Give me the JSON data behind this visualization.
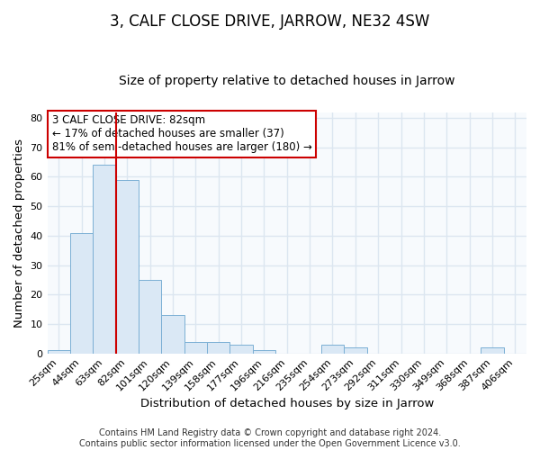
{
  "title": "3, CALF CLOSE DRIVE, JARROW, NE32 4SW",
  "subtitle": "Size of property relative to detached houses in Jarrow",
  "xlabel": "Distribution of detached houses by size in Jarrow",
  "ylabel": "Number of detached properties",
  "bar_labels": [
    "25sqm",
    "44sqm",
    "63sqm",
    "82sqm",
    "101sqm",
    "120sqm",
    "139sqm",
    "158sqm",
    "177sqm",
    "196sqm",
    "216sqm",
    "235sqm",
    "254sqm",
    "273sqm",
    "292sqm",
    "311sqm",
    "330sqm",
    "349sqm",
    "368sqm",
    "387sqm",
    "406sqm"
  ],
  "bar_values": [
    1,
    41,
    64,
    59,
    25,
    13,
    4,
    4,
    3,
    1,
    0,
    0,
    3,
    2,
    0,
    0,
    0,
    0,
    0,
    2,
    0
  ],
  "bar_color": "#dae8f5",
  "bar_edge_color": "#7bafd4",
  "vline_index": 3,
  "vline_color": "#cc0000",
  "ylim": [
    0,
    82
  ],
  "yticks": [
    0,
    10,
    20,
    30,
    40,
    50,
    60,
    70,
    80
  ],
  "annotation_lines": [
    "3 CALF CLOSE DRIVE: 82sqm",
    "← 17% of detached houses are smaller (37)",
    "81% of semi-detached houses are larger (180) →"
  ],
  "annotation_box_color": "#cc0000",
  "footer_lines": [
    "Contains HM Land Registry data © Crown copyright and database right 2024.",
    "Contains public sector information licensed under the Open Government Licence v3.0."
  ],
  "background_color": "#ffffff",
  "plot_bg_color": "#f7fafd",
  "grid_color": "#dce6f0",
  "title_fontsize": 12,
  "subtitle_fontsize": 10,
  "axis_label_fontsize": 9.5,
  "tick_fontsize": 8,
  "annotation_fontsize": 8.5,
  "footer_fontsize": 7
}
